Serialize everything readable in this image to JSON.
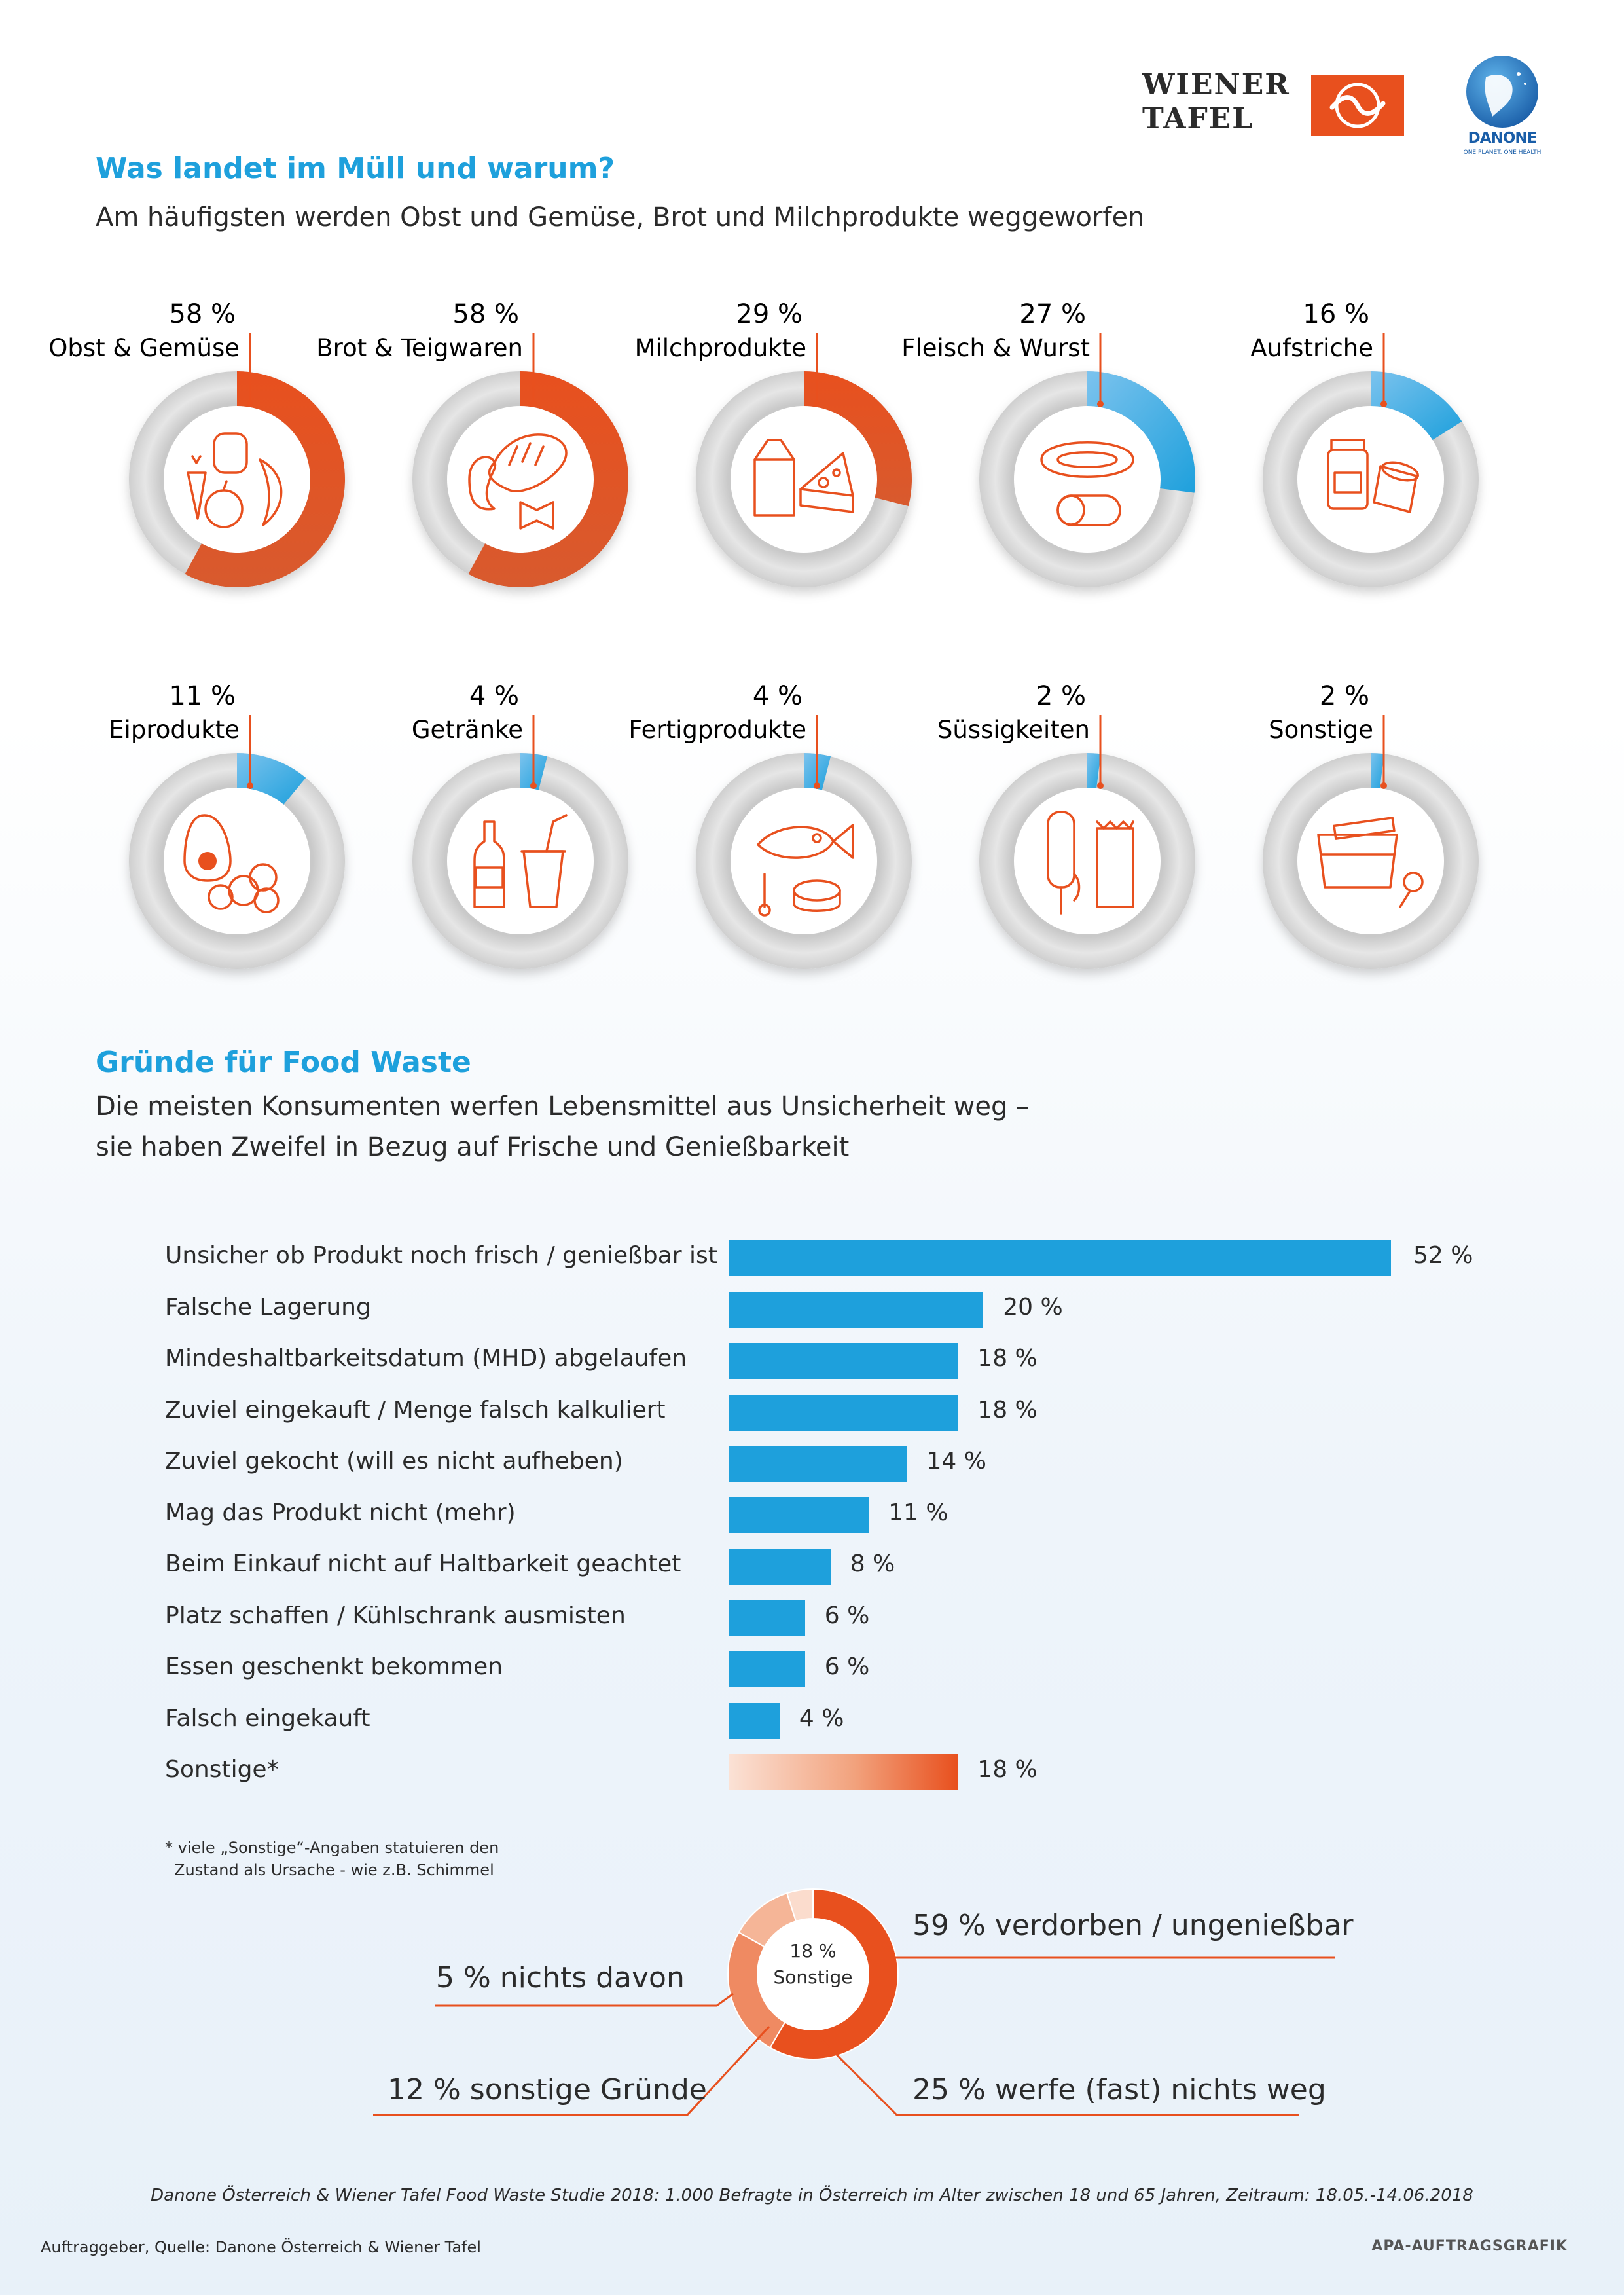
{
  "logos": {
    "wiener_tafel_line1": "WIENER",
    "wiener_tafel_line2": "TAFEL",
    "danone_word": "DANONE",
    "danone_tagline": "ONE PLANET. ONE HEALTH",
    "colors": {
      "wiener_tafel": "#e8501e",
      "danone": "#1a5ea8"
    }
  },
  "section1": {
    "title": "Was landet im Müll und warum?",
    "subtitle": "Am häufigsten werden Obst und Gemüse, Brot und Milchprodukte weggeworfen"
  },
  "section2": {
    "title": "Gründe für Food Waste",
    "subtitle_line1": "Die meisten Konsumenten werfen Lebensmittel aus Unsicherheit weg –",
    "subtitle_line2": "sie haben Zweifel in Bezug auf Frische und Genießbarkeit"
  },
  "footnote_line1": "* viele „Sonstige“-Angaben statuieren den",
  "footnote_line2": "Zustand als Ursache - wie z.B. Schimmel",
  "study_note": "Danone Österreich & Wiener Tafel Food Waste Studie 2018: 1.000 Befragte in Österreich im Alter zwischen 18 und 65 Jahren, Zeitraum: 18.05.-14.06.2018",
  "client": "Auftraggeber, Quelle: Danone Österreich & Wiener Tafel",
  "apa": "APA-AUFTRAGSGRAFIK",
  "colors": {
    "orange": "#e8501e",
    "blue": "#1ea0dc",
    "title_blue": "#1ea0dc",
    "ring_grey": "#d4d4d4"
  },
  "chart_data": [
    {
      "type": "pie",
      "variant": "donut-gauges",
      "unit": "%",
      "categories": [
        {
          "label": "Obst & Gemüse",
          "pct_label": "58 %",
          "value": 58,
          "color": "orange",
          "icon": "fruit-vegetables-icon"
        },
        {
          "label": "Brot & Teigwaren",
          "pct_label": "58 %",
          "value": 58,
          "color": "orange",
          "icon": "bread-pasta-icon"
        },
        {
          "label": "Milchprodukte",
          "pct_label": "29 %",
          "value": 29,
          "color": "orange",
          "icon": "dairy-icon"
        },
        {
          "label": "Fleisch & Wurst",
          "pct_label": "27 %",
          "value": 27,
          "color": "blue",
          "icon": "meat-sausage-icon"
        },
        {
          "label": "Aufstriche",
          "pct_label": "16 %",
          "value": 16,
          "color": "blue",
          "icon": "spreads-jars-icon"
        },
        {
          "label": "Eiprodukte",
          "pct_label": "11 %",
          "value": 11,
          "color": "blue",
          "icon": "egg-icon"
        },
        {
          "label": "Getränke",
          "pct_label": "4 %",
          "value": 4,
          "color": "blue",
          "icon": "drinks-icon"
        },
        {
          "label": "Fertigprodukte",
          "pct_label": "4 %",
          "value": 4,
          "color": "blue",
          "icon": "ready-meals-icon"
        },
        {
          "label": "Süssigkeiten",
          "pct_label": "2 %",
          "value": 2,
          "color": "blue",
          "icon": "sweets-icon"
        },
        {
          "label": "Sonstige",
          "pct_label": "2 %",
          "value": 2,
          "color": "blue",
          "icon": "other-food-icon"
        }
      ]
    },
    {
      "type": "bar",
      "orientation": "horizontal",
      "xlim": [
        0,
        52
      ],
      "unit": "%",
      "categories": [
        "Unsicher ob Produkt noch frisch / genießbar ist",
        "Falsche Lagerung",
        "Mindeshaltbarkeitsdatum (MHD) abgelaufen",
        "Zuviel eingekauft / Menge falsch kalkuliert",
        "Zuviel gekocht (will es nicht aufheben)",
        "Mag das Produkt nicht (mehr)",
        "Beim Einkauf nicht auf Haltbarkeit geachtet",
        "Platz schaffen / Kühlschrank ausmisten",
        "Essen geschenkt bekommen",
        "Falsch eingekauft",
        "Sonstige*"
      ],
      "values": [
        52,
        20,
        18,
        18,
        14,
        11,
        8,
        6,
        6,
        4,
        18
      ],
      "value_labels": [
        "52 %",
        "20 %",
        "18 %",
        "18 %",
        "14 %",
        "11 %",
        "8 %",
        "6 %",
        "6 %",
        "4 %",
        "18 %"
      ],
      "highlight": {
        "index": 10,
        "style": "gradient-orange"
      }
    },
    {
      "type": "pie",
      "variant": "donut",
      "center_line1": "18 %",
      "center_line2": "Sonstige",
      "slices": [
        {
          "label": "59 % verdorben / ungenießbar",
          "value": 59,
          "color": "#e8501e"
        },
        {
          "label": "25 % werfe (fast) nichts weg",
          "value": 25,
          "color": "#ef8a62"
        },
        {
          "label": "12 % sonstige Gründe",
          "value": 12,
          "color": "#f5b597"
        },
        {
          "label": "5 % nichts davon",
          "value": 5,
          "color": "#fbdccd"
        }
      ]
    }
  ]
}
